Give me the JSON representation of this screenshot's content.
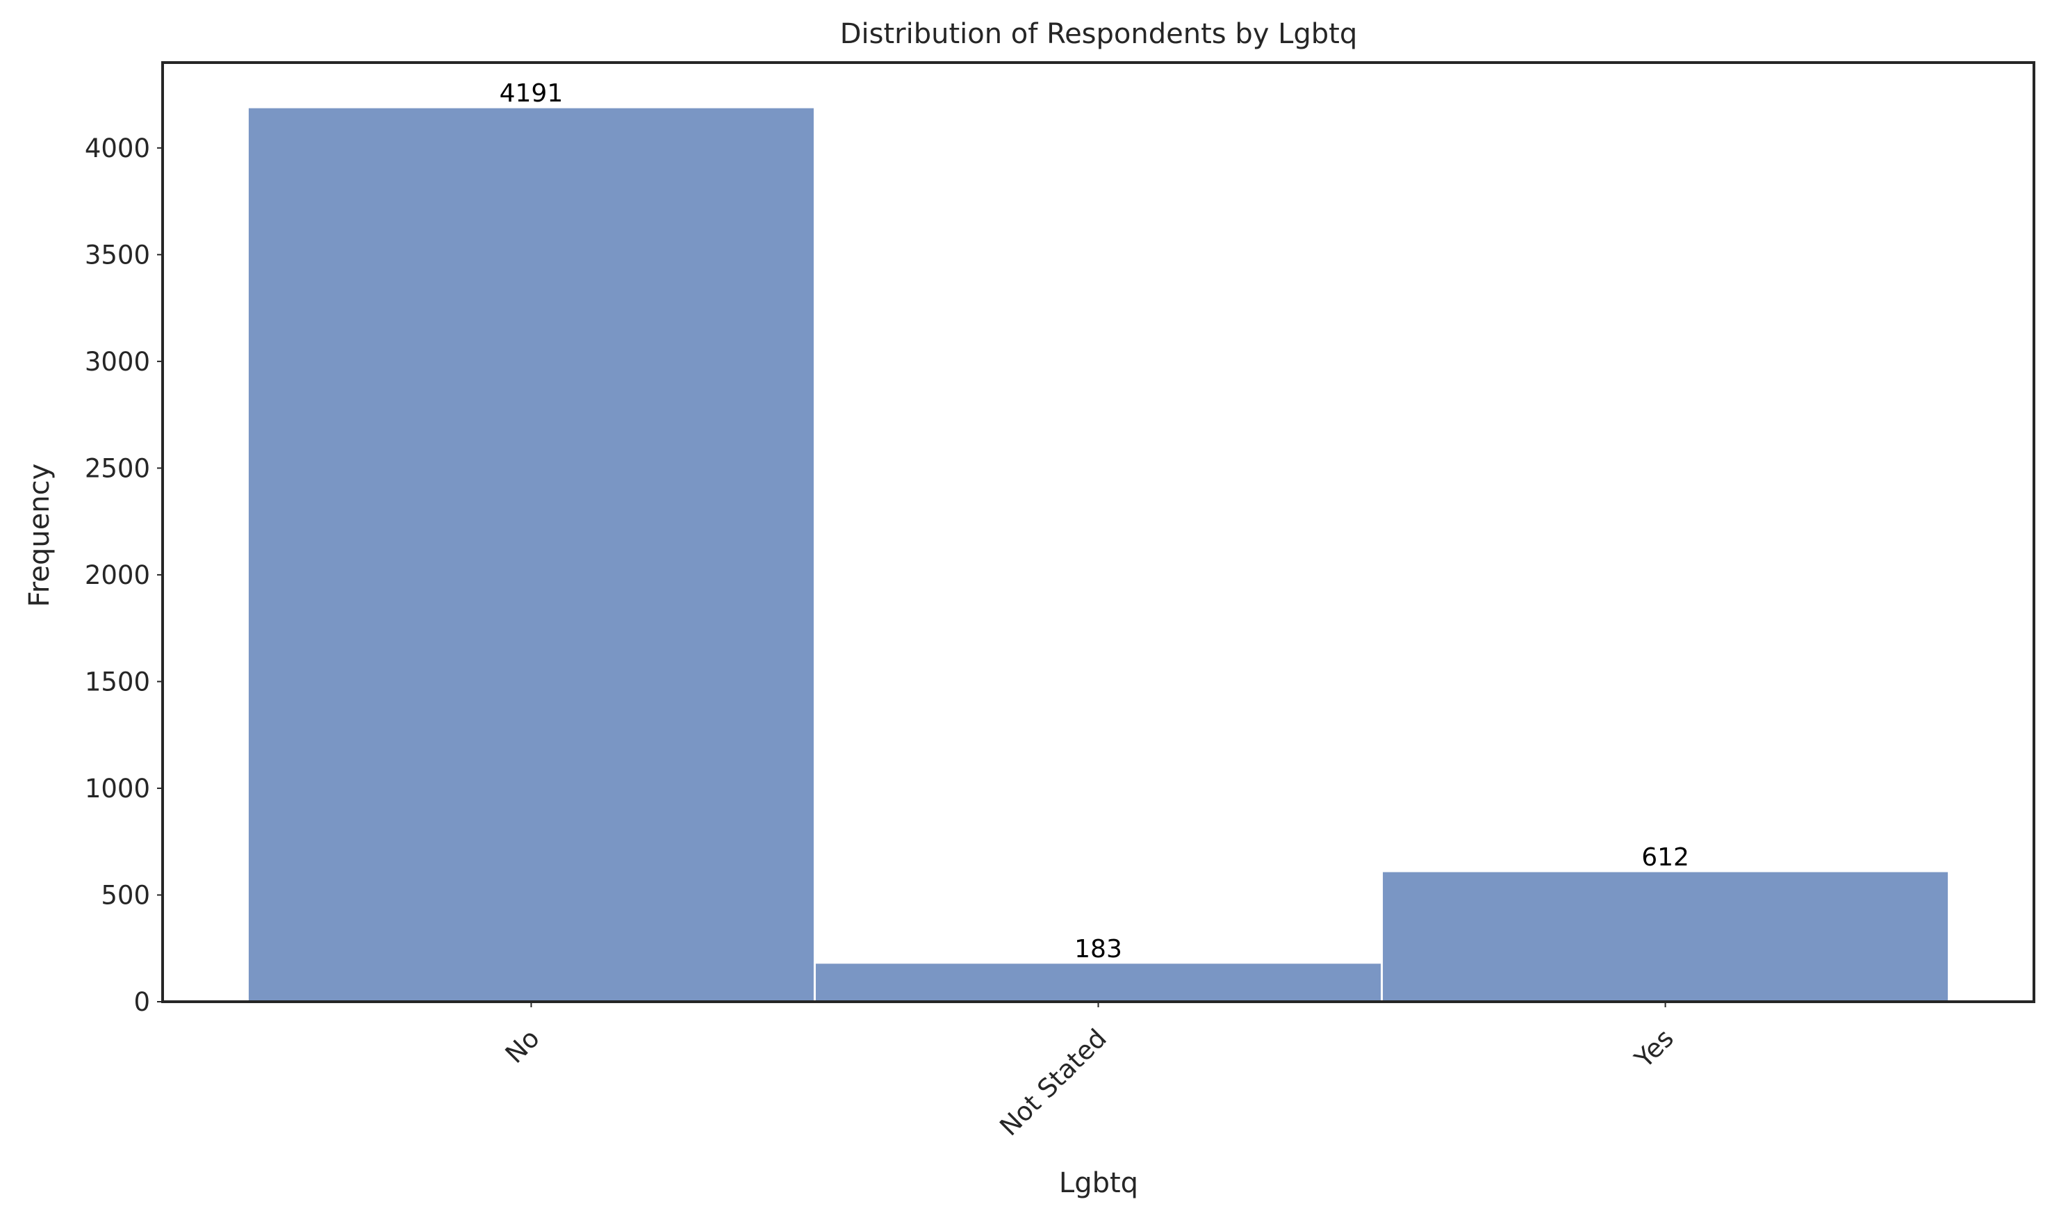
{
  "chart_data": {
    "type": "bar",
    "title": "Distribution of Respondents by Lgbtq",
    "xlabel": "Lgbtq",
    "ylabel": "Frequency",
    "categories": [
      "No",
      "Not Stated",
      "Yes"
    ],
    "values": [
      4191,
      183,
      612
    ],
    "data_labels": [
      "4191",
      "183",
      "612"
    ],
    "ylim": [
      0,
      4400
    ],
    "yticks": [
      0,
      500,
      1000,
      1500,
      2000,
      2500,
      3000,
      3500,
      4000
    ],
    "ytick_labels": [
      "0",
      "500",
      "1000",
      "1500",
      "2000",
      "2500",
      "3000",
      "3500",
      "4000"
    ],
    "grid": false,
    "legend": "none",
    "bar_color": "#7a96c4",
    "frame_color": "#262626"
  }
}
